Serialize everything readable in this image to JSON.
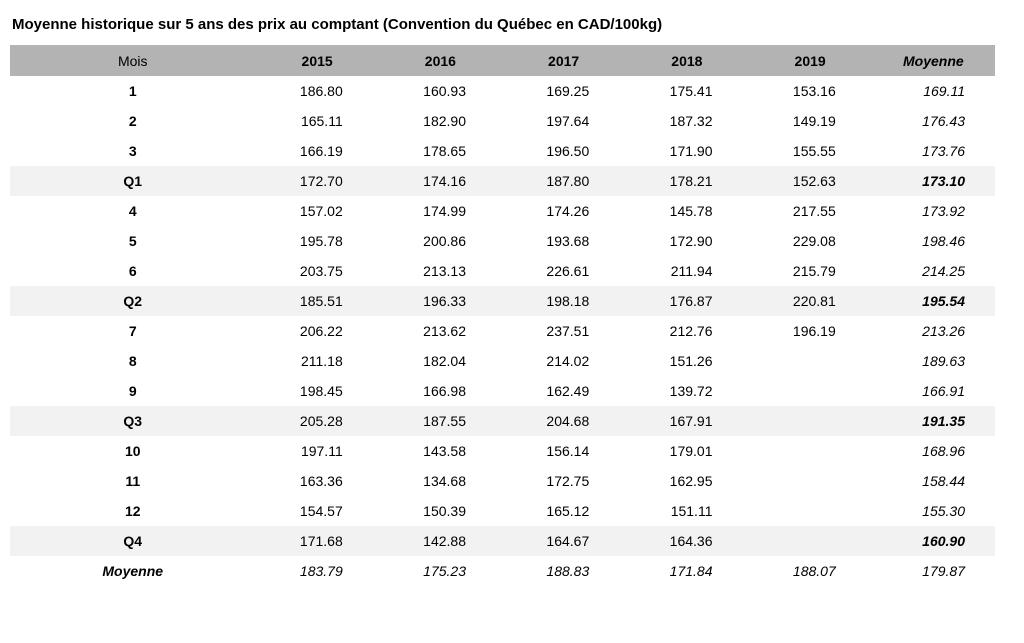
{
  "chart_data": {
    "type": "table",
    "title": "Moyenne historique sur 5 ans des prix au comptant (Convention du Québec en CAD/100kg)",
    "columns": [
      "Mois",
      "2015",
      "2016",
      "2017",
      "2018",
      "2019",
      "Moyenne"
    ],
    "rows": [
      {
        "label": "1",
        "type": "month",
        "values": [
          "186.80",
          "160.93",
          "169.25",
          "175.41",
          "153.16",
          "169.11"
        ]
      },
      {
        "label": "2",
        "type": "month",
        "values": [
          "165.11",
          "182.90",
          "197.64",
          "187.32",
          "149.19",
          "176.43"
        ]
      },
      {
        "label": "3",
        "type": "month",
        "values": [
          "166.19",
          "178.65",
          "196.50",
          "171.90",
          "155.55",
          "173.76"
        ]
      },
      {
        "label": "Q1",
        "type": "quarter",
        "values": [
          "172.70",
          "174.16",
          "187.80",
          "178.21",
          "152.63",
          "173.10"
        ]
      },
      {
        "label": "4",
        "type": "month",
        "values": [
          "157.02",
          "174.99",
          "174.26",
          "145.78",
          "217.55",
          "173.92"
        ]
      },
      {
        "label": "5",
        "type": "month",
        "values": [
          "195.78",
          "200.86",
          "193.68",
          "172.90",
          "229.08",
          "198.46"
        ]
      },
      {
        "label": "6",
        "type": "month",
        "values": [
          "203.75",
          "213.13",
          "226.61",
          "211.94",
          "215.79",
          "214.25"
        ]
      },
      {
        "label": "Q2",
        "type": "quarter",
        "values": [
          "185.51",
          "196.33",
          "198.18",
          "176.87",
          "220.81",
          "195.54"
        ]
      },
      {
        "label": "7",
        "type": "month",
        "values": [
          "206.22",
          "213.62",
          "237.51",
          "212.76",
          "196.19",
          "213.26"
        ]
      },
      {
        "label": "8",
        "type": "month",
        "values": [
          "211.18",
          "182.04",
          "214.02",
          "151.26",
          "",
          "189.63"
        ]
      },
      {
        "label": "9",
        "type": "month",
        "values": [
          "198.45",
          "166.98",
          "162.49",
          "139.72",
          "",
          "166.91"
        ]
      },
      {
        "label": "Q3",
        "type": "quarter",
        "values": [
          "205.28",
          "187.55",
          "204.68",
          "167.91",
          "",
          "191.35"
        ]
      },
      {
        "label": "10",
        "type": "month",
        "values": [
          "197.11",
          "143.58",
          "156.14",
          "179.01",
          "",
          "168.96"
        ]
      },
      {
        "label": "11",
        "type": "month",
        "values": [
          "163.36",
          "134.68",
          "172.75",
          "162.95",
          "",
          "158.44"
        ]
      },
      {
        "label": "12",
        "type": "month",
        "values": [
          "154.57",
          "150.39",
          "165.12",
          "151.11",
          "",
          "155.30"
        ]
      },
      {
        "label": "Q4",
        "type": "quarter",
        "values": [
          "171.68",
          "142.88",
          "164.67",
          "164.36",
          "",
          "160.90"
        ]
      },
      {
        "label": "Moyenne",
        "type": "average",
        "values": [
          "183.79",
          "175.23",
          "188.83",
          "171.84",
          "188.07",
          "179.87"
        ]
      }
    ],
    "layout": {
      "header_bg": "#b3b3b3",
      "quarter_row_bg": "#f2f2f2",
      "grid": false
    }
  }
}
